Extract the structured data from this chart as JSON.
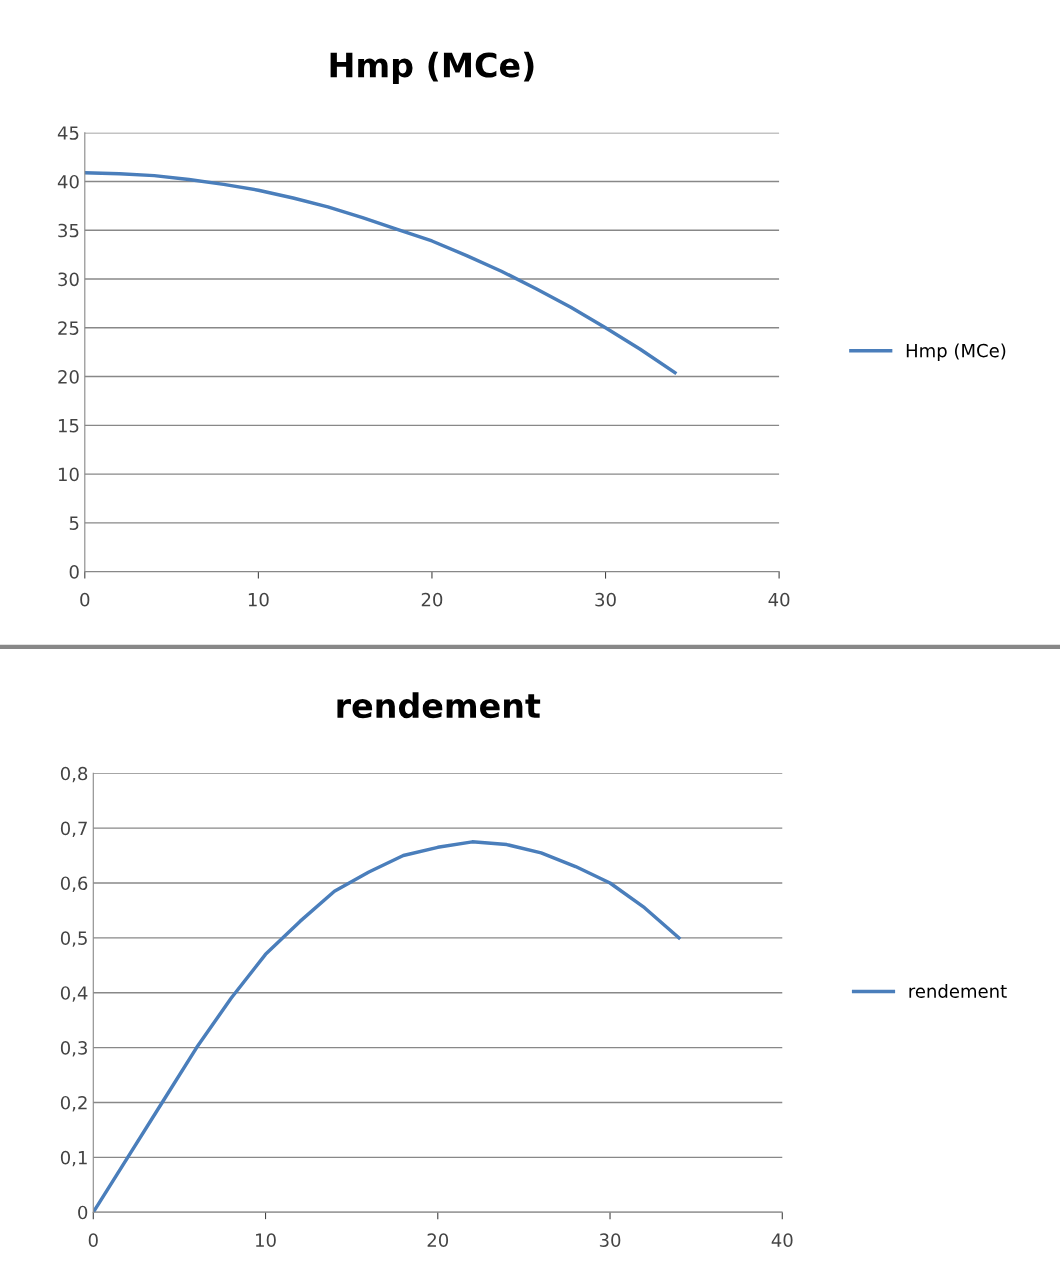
{
  "chart_data": [
    {
      "type": "line",
      "title": "Hmp (MCe)",
      "x": [
        0,
        2,
        4,
        6,
        8,
        10,
        12,
        14,
        16,
        18,
        20,
        22,
        24,
        26,
        28,
        30,
        32,
        34
      ],
      "series": [
        {
          "name": "Hmp (MCe)",
          "color": "#4a7ebb",
          "values": [
            40.9,
            40.8,
            40.6,
            40.2,
            39.7,
            39.1,
            38.3,
            37.4,
            36.3,
            35.1,
            33.9,
            32.4,
            30.8,
            29.0,
            27.1,
            25.0,
            22.8,
            20.4
          ]
        }
      ],
      "xlim": [
        0,
        40
      ],
      "xticks": [
        0,
        10,
        20,
        30,
        40
      ],
      "ylim": [
        0,
        45
      ],
      "yticks": [
        0,
        5,
        10,
        15,
        20,
        25,
        30,
        35,
        40,
        45
      ],
      "grid": "y",
      "legend": "right",
      "marker": "none",
      "line_style": "solid"
    },
    {
      "type": "line",
      "title": "rendement",
      "x": [
        0,
        2,
        4,
        6,
        8,
        10,
        12,
        14,
        16,
        18,
        20,
        22,
        24,
        26,
        28,
        30,
        32,
        34
      ],
      "series": [
        {
          "name": "rendement",
          "color": "#4a7ebb",
          "values": [
            0,
            0.1,
            0.2,
            0.3,
            0.39,
            0.47,
            0.53,
            0.585,
            0.62,
            0.65,
            0.665,
            0.675,
            0.67,
            0.655,
            0.63,
            0.6,
            0.555,
            0.5
          ]
        }
      ],
      "xlim": [
        0,
        40
      ],
      "xticks": [
        0,
        10,
        20,
        30,
        40
      ],
      "ylim": [
        0,
        0.8
      ],
      "yticks": [
        0,
        {
          "value": 0.1,
          "label": "0,1"
        },
        {
          "value": 0.2,
          "label": "0,2"
        },
        {
          "value": 0.3,
          "label": "0,3"
        },
        {
          "value": 0.4,
          "label": "0,4"
        },
        {
          "value": 0.5,
          "label": "0,5"
        },
        {
          "value": 0.6,
          "label": "0,6"
        },
        {
          "value": 0.7,
          "label": "0,7"
        },
        {
          "value": 0.8,
          "label": "0,8"
        }
      ],
      "grid": "y",
      "legend": "right",
      "marker": "none",
      "line_style": "solid"
    }
  ]
}
